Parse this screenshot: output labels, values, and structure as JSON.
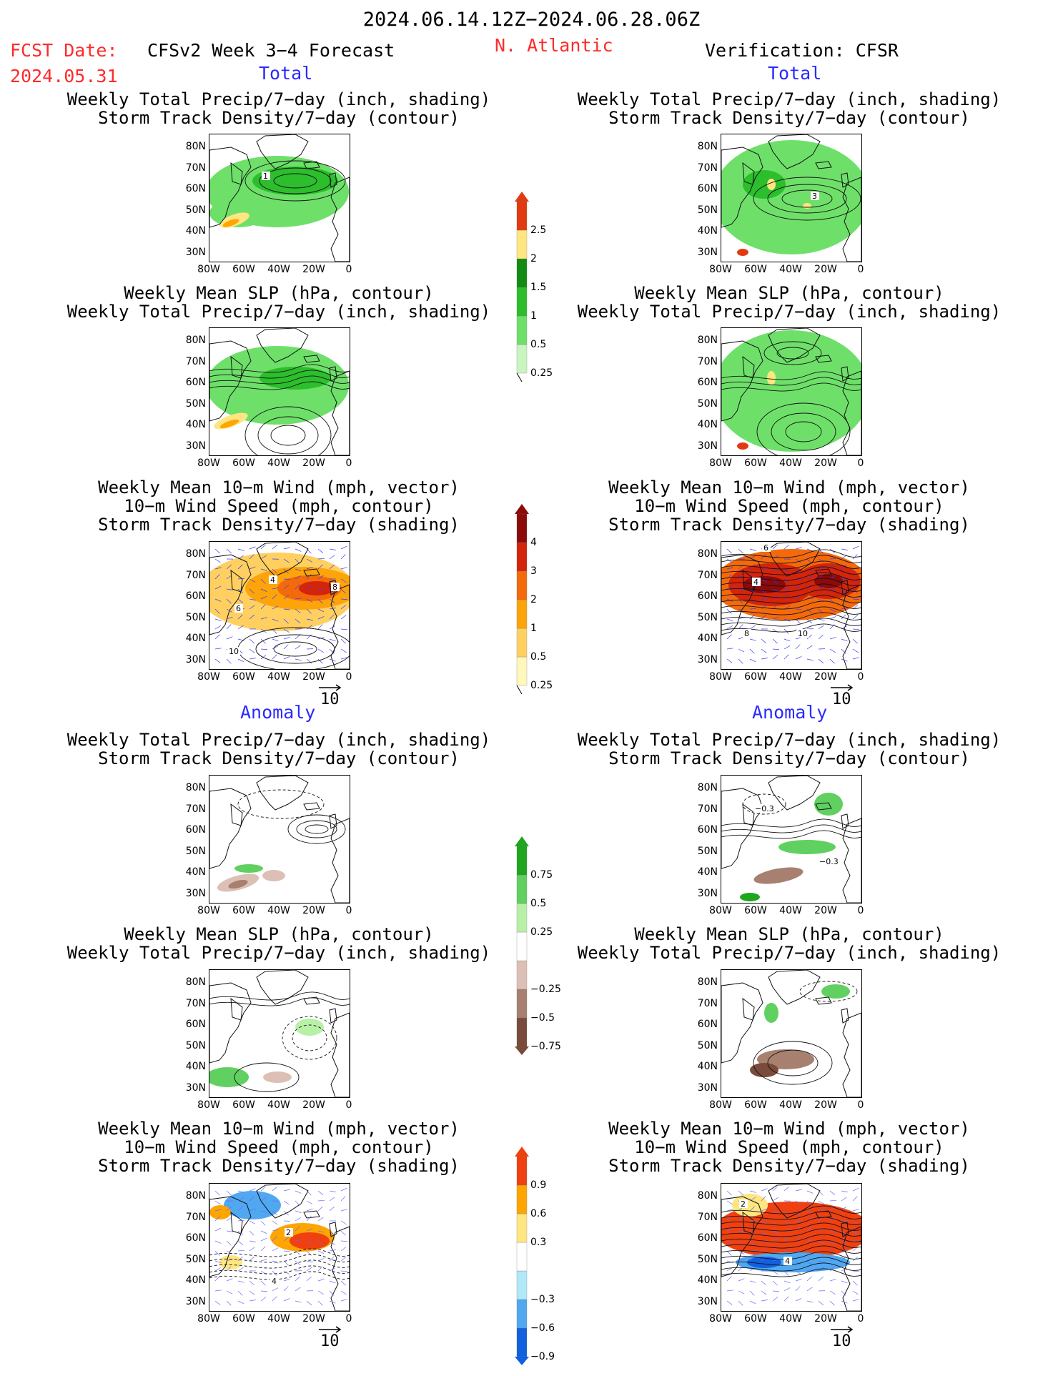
{
  "header": {
    "period": "2024.06.14.12Z−2024.06.28.06Z",
    "fcst_label": "FCST Date:",
    "fcst_date": "2024.05.31",
    "model": "CFSv2 Week 3−4 Forecast",
    "region": "N. Atlantic",
    "verification": "Verification: CFSR",
    "total_left": "Total",
    "total_right": "Total",
    "anomaly_left": "Anomaly",
    "anomaly_right": "Anomaly"
  },
  "panels": {
    "p1_l1": "Weekly Total Precip/7−day (inch, shading)",
    "p1_l2": "Storm Track Density/7−day (contour)",
    "p2_l1": "Weekly Mean SLP (hPa, contour)",
    "p2_l2": "Weekly Total Precip/7−day (inch, shading)",
    "p3_l1": "Weekly Mean 10−m Wind (mph, vector)",
    "p3_l2": "10−m Wind Speed (mph, contour)",
    "p3_l3": "Storm Track Density/7−day (shading)"
  },
  "axes": {
    "lat": [
      "80N",
      "70N",
      "60N",
      "50N",
      "40N",
      "30N"
    ],
    "lon": [
      "80W",
      "60W",
      "40W",
      "20W",
      "0"
    ]
  },
  "vector_ref": "10",
  "colorbars": {
    "precip": [
      "0.25",
      "0.5",
      "1",
      "1.5",
      "2",
      "2.5"
    ],
    "storm": [
      "0.25",
      "0.5",
      "1",
      "2",
      "3",
      "4"
    ],
    "precip_anom": [
      "−0.75",
      "−0.5",
      "−0.25",
      "0.25",
      "0.5",
      "0.75"
    ],
    "storm_anom": [
      "−0.9",
      "−0.6",
      "−0.3",
      "0.3",
      "0.6",
      "0.9"
    ]
  },
  "contour_labels": {
    "fc_track": "1",
    "ob_track": "3",
    "fc_wind_a": "4",
    "fc_wind_b": "8",
    "fc_wind_c": "6",
    "fc_wind_d": "10",
    "ob_wind_a": "4",
    "ob_wind_b": "6",
    "ob_wind_c": "8",
    "ob_wind_d": "10",
    "ob_anom_a": "−0.3",
    "ob_anom_b": "−0.3",
    "fc_anom_w": "2",
    "fc_anom_w2": "4",
    "ob_anom_w": "2",
    "ob_anom_w2": "4"
  },
  "colors": {
    "precip": [
      "#c8f5c0",
      "#6ee06a",
      "#2cbe2c",
      "#128c12",
      "#ffe680",
      "#ffa500",
      "#e23a10"
    ],
    "storm": [
      "#fff7bc",
      "#ffd060",
      "#fda40a",
      "#f46a0a",
      "#d4240a",
      "#8c0a0a"
    ],
    "precip_anom": [
      "#7a4a3a",
      "#a88070",
      "#dcc0b6",
      "#b8f0a8",
      "#60d060",
      "#1ea61e"
    ],
    "storm_anom": [
      "#1060e0",
      "#50a8f0",
      "#b0e8f8",
      "#ffe680",
      "#ffa500",
      "#f04010"
    ]
  }
}
